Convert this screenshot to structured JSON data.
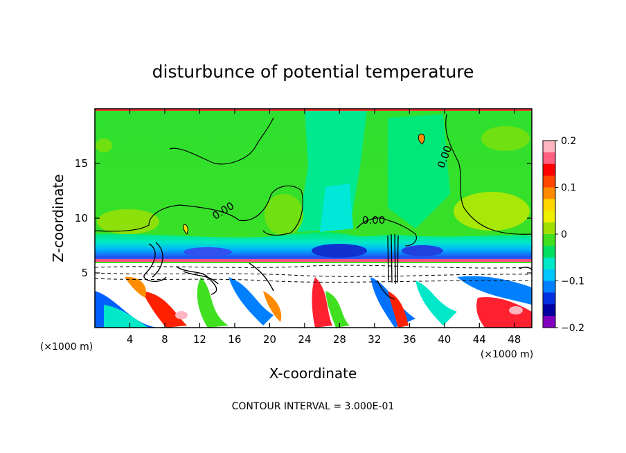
{
  "chart_data": {
    "type": "heatmap",
    "title": "disturbunce of potential temperature",
    "xlabel": "X-coordinate",
    "ylabel": "Z-coordinate",
    "x_unit_left": "(×1000 m)",
    "x_unit_right": "(×1000 m)",
    "xlim": [
      0,
      50
    ],
    "ylim": [
      0,
      20
    ],
    "x_ticks": [
      4,
      8,
      12,
      16,
      20,
      24,
      28,
      32,
      36,
      40,
      44,
      48
    ],
    "y_ticks": [
      5,
      10,
      15
    ],
    "colorbar": {
      "min": -0.2,
      "max": 0.2,
      "ticks": [
        "0.2",
        "0.1",
        "0",
        "−0.1",
        "−0.2"
      ],
      "tick_values": [
        0.2,
        0.1,
        0,
        -0.1,
        -0.2
      ],
      "colors": [
        "#ffb6c1",
        "#ff6080",
        "#ff0000",
        "#ff4500",
        "#ff8c00",
        "#ffd700",
        "#eeee00",
        "#a0e000",
        "#40e020",
        "#00e060",
        "#00e8c8",
        "#00c8ff",
        "#0080ff",
        "#0030e0",
        "#0000a0",
        "#8000c0"
      ]
    },
    "contour_labels": [
      {
        "text": "0.00",
        "x": 14.9,
        "z": 10.4,
        "angle": -32
      },
      {
        "text": "0.00",
        "x": 31.9,
        "z": 9.5,
        "angle": 0
      },
      {
        "text": "0.00",
        "x": 40.4,
        "z": 15.5,
        "angle": -70
      }
    ],
    "footer": "CONTOUR INTERVAL = 3.000E-01"
  }
}
